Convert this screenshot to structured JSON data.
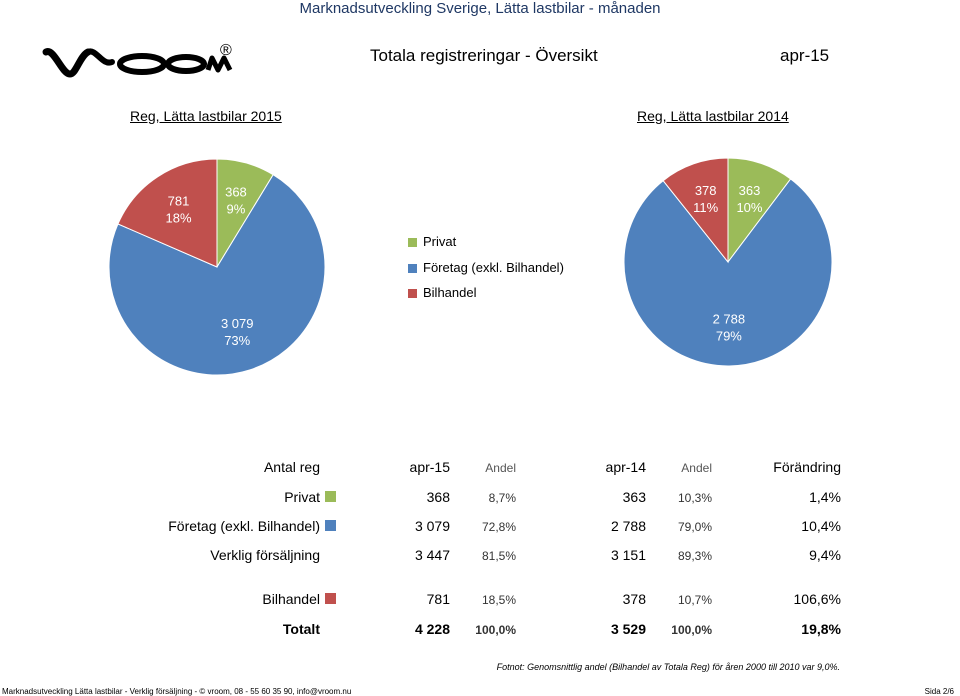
{
  "header": {
    "top_title": "Marknadsutveckling Sverige, Lätta lastbilar - månaden",
    "logo_text": "vroom",
    "logo_mark": "®",
    "main_title": "Totala registreringar - Översikt",
    "period": "apr-15"
  },
  "colors": {
    "privat": "#9bbb59",
    "foretag": "#4f81bd",
    "bilhandel": "#c0504d"
  },
  "chart_data": [
    {
      "type": "pie",
      "title": "Reg, Lätta lastbilar 2015",
      "slices": [
        {
          "name": "Privat",
          "value": 368,
          "label": "368",
          "pct": "9%"
        },
        {
          "name": "Företag (exkl. Bilhandel)",
          "value": 3079,
          "label": "3 079",
          "pct": "73%"
        },
        {
          "name": "Bilhandel",
          "value": 781,
          "label": "781",
          "pct": "18%"
        }
      ]
    },
    {
      "type": "pie",
      "title": "Reg, Lätta lastbilar 2014",
      "slices": [
        {
          "name": "Privat",
          "value": 363,
          "label": "363",
          "pct": "10%"
        },
        {
          "name": "Företag (exkl. Bilhandel)",
          "value": 2788,
          "label": "2 788",
          "pct": "79%"
        },
        {
          "name": "Bilhandel",
          "value": 378,
          "label": "378",
          "pct": "11%"
        }
      ]
    }
  ],
  "legend": [
    "Privat",
    "Företag (exkl. Bilhandel)",
    "Bilhandel"
  ],
  "table": {
    "headers": {
      "label": "Antal reg",
      "p1": "apr-15",
      "a1": "Andel",
      "p2": "apr-14",
      "a2": "Andel",
      "change": "Förändring"
    },
    "rows": [
      {
        "label": "Privat",
        "v1": "368",
        "a1": "8,7%",
        "v2": "363",
        "a2": "10,3%",
        "ch": "1,4%"
      },
      {
        "label": "Företag (exkl. Bilhandel)",
        "v1": "3 079",
        "a1": "72,8%",
        "v2": "2 788",
        "a2": "79,0%",
        "ch": "10,4%"
      },
      {
        "label": "Verklig försäljning",
        "v1": "3 447",
        "a1": "81,5%",
        "v2": "3 151",
        "a2": "89,3%",
        "ch": "9,4%"
      },
      {
        "label": "Bilhandel",
        "v1": "781",
        "a1": "18,5%",
        "v2": "378",
        "a2": "10,7%",
        "ch": "106,6%"
      },
      {
        "label": "Totalt",
        "v1": "4 228",
        "a1": "100,0%",
        "v2": "3 529",
        "a2": "100,0%",
        "ch": "19,8%"
      }
    ]
  },
  "footnote": "Fotnot: Genomsnittlig andel (Bilhandel av Totala Reg) för åren 2000 till 2010 var 9,0%.",
  "footer": {
    "left": "Marknadsutveckling Lätta lastbilar  -  Verklig försäljning  -  © vroom, 08 - 55 60 35 90, info@vroom.nu",
    "right": "Sida 2/6"
  }
}
